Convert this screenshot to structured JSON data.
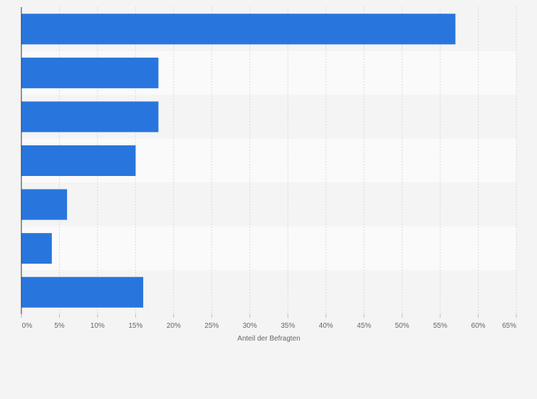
{
  "chart_data": {
    "type": "bar",
    "orientation": "horizontal",
    "categories": [
      "",
      "",
      "",
      "",
      "",
      "",
      ""
    ],
    "values": [
      57,
      18,
      18,
      15,
      6,
      4,
      16
    ],
    "xlabel": "Anteil der Befragten",
    "ylabel": "",
    "xlim": [
      0,
      65
    ],
    "x_ticks": [
      0,
      5,
      10,
      15,
      20,
      25,
      30,
      35,
      40,
      45,
      50,
      55,
      60,
      65
    ],
    "x_tick_labels": [
      "0%",
      "5%",
      "10%",
      "15%",
      "20%",
      "25%",
      "30%",
      "35%",
      "40%",
      "45%",
      "50%",
      "55%",
      "60%",
      "65%"
    ],
    "grid": true,
    "bar_color": "#2876dd",
    "band_colors": [
      "#f4f4f4",
      "#fafafa"
    ]
  }
}
